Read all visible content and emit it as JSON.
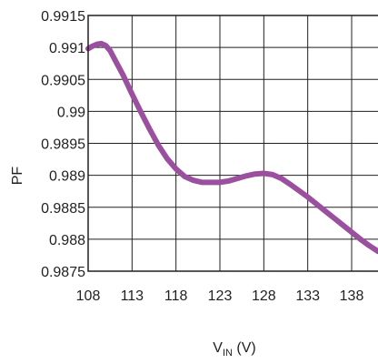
{
  "chart_data": {
    "type": "line",
    "title": "",
    "xlabel_main": "V",
    "xlabel_sub": "IN",
    "xlabel_unit": " (V)",
    "ylabel": "PF",
    "xlim": [
      108,
      141
    ],
    "ylim": [
      0.9875,
      0.9915
    ],
    "x_ticks": [
      108,
      113,
      118,
      123,
      128,
      133,
      138
    ],
    "y_ticks": [
      0.9875,
      0.988,
      0.9885,
      0.989,
      0.9895,
      0.99,
      0.9905,
      0.991,
      0.9915
    ],
    "y_tick_labels": [
      "0.9875",
      "0.988",
      "0.9885",
      "0.989",
      "0.9895",
      "0.99",
      "0.9905",
      "0.991",
      "0.9915"
    ],
    "grid": true,
    "line_color": "#9b4f9f",
    "series": [
      {
        "x": [
          108.0,
          108.5,
          109.0,
          109.5,
          110.0,
          110.5,
          111.0,
          112.0,
          113.0,
          114.0,
          115.0,
          116.0,
          117.0,
          118.0,
          119.0,
          120.0,
          121.0,
          122.0,
          123.0,
          124.0,
          125.0,
          126.0,
          127.0,
          128.0,
          129.0,
          130.0,
          131.0,
          132.0,
          133.0,
          134.0,
          135.0,
          136.0,
          137.0,
          138.0,
          139.0,
          140.0,
          141.0
        ],
        "y": [
          0.99098,
          0.99102,
          0.99105,
          0.99106,
          0.99103,
          0.99095,
          0.99082,
          0.99056,
          0.99027,
          0.98999,
          0.98972,
          0.98947,
          0.98926,
          0.9891,
          0.98898,
          0.98892,
          0.98889,
          0.98889,
          0.98889,
          0.98891,
          0.98895,
          0.98899,
          0.98902,
          0.98903,
          0.98901,
          0.98895,
          0.98886,
          0.98876,
          0.98866,
          0.98855,
          0.98844,
          0.98833,
          0.98822,
          0.98811,
          0.988,
          0.9879,
          0.98781
        ]
      }
    ]
  }
}
